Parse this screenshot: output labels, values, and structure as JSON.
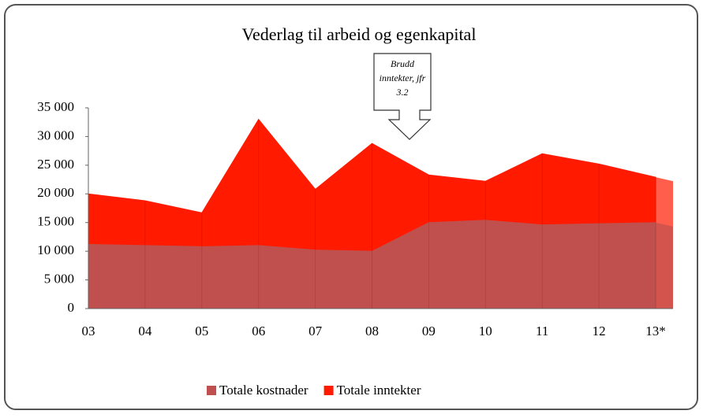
{
  "chart_data": {
    "type": "area",
    "title": "Vederlag til arbeid og egenkapital",
    "annotation": [
      "Brudd",
      "inntekter, jfr",
      "3.2"
    ],
    "categories": [
      "03",
      "04",
      "05",
      "06",
      "07",
      "08",
      "09",
      "10",
      "11",
      "12",
      "13*"
    ],
    "series": [
      {
        "name": "Totale inntekter",
        "color": "#ff1a00",
        "values": [
          20000,
          18800,
          16700,
          33000,
          20800,
          28800,
          23300,
          22200,
          27000,
          25200,
          22900
        ]
      },
      {
        "name": "Totale kostnader",
        "color": "#c0504d",
        "values": [
          11200,
          11000,
          10800,
          11000,
          10200,
          10000,
          15000,
          15400,
          14600,
          14800,
          15000
        ]
      }
    ],
    "legend_order": [
      1,
      0
    ],
    "ylim": [
      0,
      35000
    ],
    "yticks": [
      0,
      {
        "value": 5000,
        "label": "5 000"
      },
      {
        "value": 10000,
        "label": "10 000"
      },
      {
        "value": 15000,
        "label": "15 000"
      },
      {
        "value": 20000,
        "label": "20 000"
      },
      {
        "value": 25000,
        "label": "25 000"
      },
      {
        "value": 30000,
        "label": "30 000"
      },
      {
        "value": 35000,
        "label": "35 000"
      }
    ],
    "grid": false
  }
}
